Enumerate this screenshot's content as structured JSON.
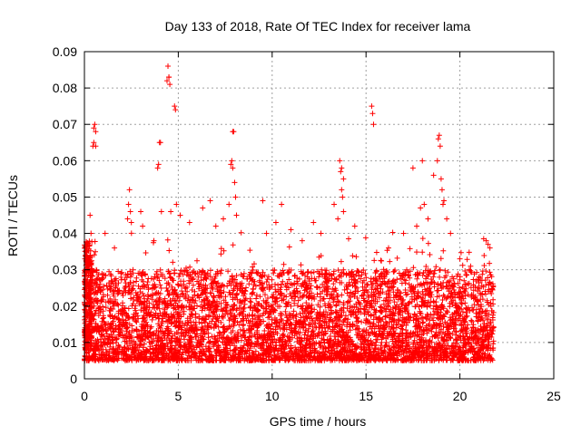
{
  "chart_data": {
    "type": "scatter",
    "title": "Day 133 of 2018, Rate Of TEC Index for receiver lama",
    "xlabel": "GPS time / hours",
    "ylabel": "ROTI / TECUs",
    "xlim": [
      0,
      25
    ],
    "ylim": [
      0,
      0.09
    ],
    "x_ticks": [
      0,
      5,
      10,
      15,
      20,
      25
    ],
    "y_ticks": [
      0,
      0.01,
      0.02,
      0.03,
      0.04,
      0.05,
      0.06,
      0.07,
      0.08,
      0.09
    ],
    "x_tick_labels": [
      "0",
      "5",
      "10",
      "15",
      "20",
      "25"
    ],
    "y_tick_labels": [
      "0",
      "0.01",
      "0.02",
      "0.03",
      "0.04",
      "0.05",
      "0.06",
      "0.07",
      "0.08",
      "0.09"
    ],
    "grid": true,
    "marker": "+",
    "color": "#ff0000",
    "series": [
      {
        "x_range": [
          0,
          21.8
        ],
        "bulk_range": [
          0.005,
          0.03
        ],
        "spikes": [
          {
            "x": 0.3,
            "y": 0.045
          },
          {
            "x": 0.35,
            "y": 0.04
          },
          {
            "x": 0.45,
            "y": 0.064
          },
          {
            "x": 0.5,
            "y": 0.065
          },
          {
            "x": 0.5,
            "y": 0.069
          },
          {
            "x": 0.55,
            "y": 0.07
          },
          {
            "x": 0.6,
            "y": 0.068
          },
          {
            "x": 0.6,
            "y": 0.064
          },
          {
            "x": 1.1,
            "y": 0.04
          },
          {
            "x": 1.6,
            "y": 0.036
          },
          {
            "x": 2.3,
            "y": 0.044
          },
          {
            "x": 2.35,
            "y": 0.048
          },
          {
            "x": 2.4,
            "y": 0.052
          },
          {
            "x": 2.45,
            "y": 0.046
          },
          {
            "x": 2.5,
            "y": 0.043
          },
          {
            "x": 3.0,
            "y": 0.046
          },
          {
            "x": 3.1,
            "y": 0.042
          },
          {
            "x": 3.7,
            "y": 0.038
          },
          {
            "x": 3.9,
            "y": 0.058
          },
          {
            "x": 3.95,
            "y": 0.059
          },
          {
            "x": 4.0,
            "y": 0.065
          },
          {
            "x": 4.05,
            "y": 0.065
          },
          {
            "x": 4.1,
            "y": 0.046
          },
          {
            "x": 4.4,
            "y": 0.082
          },
          {
            "x": 4.45,
            "y": 0.086
          },
          {
            "x": 4.5,
            "y": 0.083
          },
          {
            "x": 4.55,
            "y": 0.081
          },
          {
            "x": 4.5,
            "y": 0.083
          },
          {
            "x": 4.8,
            "y": 0.075
          },
          {
            "x": 4.85,
            "y": 0.074
          },
          {
            "x": 4.6,
            "y": 0.046
          },
          {
            "x": 4.9,
            "y": 0.048
          },
          {
            "x": 5.1,
            "y": 0.045
          },
          {
            "x": 5.6,
            "y": 0.043
          },
          {
            "x": 6.3,
            "y": 0.047
          },
          {
            "x": 6.7,
            "y": 0.049
          },
          {
            "x": 7.0,
            "y": 0.042
          },
          {
            "x": 7.4,
            "y": 0.044
          },
          {
            "x": 7.9,
            "y": 0.068
          },
          {
            "x": 7.95,
            "y": 0.068
          },
          {
            "x": 7.8,
            "y": 0.059
          },
          {
            "x": 7.85,
            "y": 0.06
          },
          {
            "x": 7.9,
            "y": 0.058
          },
          {
            "x": 8.0,
            "y": 0.054
          },
          {
            "x": 8.05,
            "y": 0.05
          },
          {
            "x": 7.7,
            "y": 0.048
          },
          {
            "x": 8.1,
            "y": 0.045
          },
          {
            "x": 9.5,
            "y": 0.049
          },
          {
            "x": 9.7,
            "y": 0.04
          },
          {
            "x": 10.2,
            "y": 0.043
          },
          {
            "x": 10.5,
            "y": 0.048
          },
          {
            "x": 11.0,
            "y": 0.041
          },
          {
            "x": 11.6,
            "y": 0.038
          },
          {
            "x": 12.2,
            "y": 0.043
          },
          {
            "x": 12.6,
            "y": 0.04
          },
          {
            "x": 13.3,
            "y": 0.048
          },
          {
            "x": 13.5,
            "y": 0.044
          },
          {
            "x": 13.6,
            "y": 0.06
          },
          {
            "x": 13.7,
            "y": 0.058
          },
          {
            "x": 13.65,
            "y": 0.057
          },
          {
            "x": 13.7,
            "y": 0.052
          },
          {
            "x": 13.75,
            "y": 0.05
          },
          {
            "x": 13.8,
            "y": 0.046
          },
          {
            "x": 13.8,
            "y": 0.055
          },
          {
            "x": 14.4,
            "y": 0.042
          },
          {
            "x": 15.3,
            "y": 0.075
          },
          {
            "x": 15.35,
            "y": 0.073
          },
          {
            "x": 15.4,
            "y": 0.07
          },
          {
            "x": 16.2,
            "y": 0.036
          },
          {
            "x": 17.0,
            "y": 0.04
          },
          {
            "x": 17.5,
            "y": 0.058
          },
          {
            "x": 17.7,
            "y": 0.042
          },
          {
            "x": 17.9,
            "y": 0.047
          },
          {
            "x": 18.0,
            "y": 0.06
          },
          {
            "x": 18.1,
            "y": 0.048
          },
          {
            "x": 18.3,
            "y": 0.044
          },
          {
            "x": 18.6,
            "y": 0.056
          },
          {
            "x": 18.8,
            "y": 0.06
          },
          {
            "x": 18.85,
            "y": 0.066
          },
          {
            "x": 18.9,
            "y": 0.067
          },
          {
            "x": 18.95,
            "y": 0.064
          },
          {
            "x": 19.0,
            "y": 0.055
          },
          {
            "x": 19.05,
            "y": 0.052
          },
          {
            "x": 19.1,
            "y": 0.048
          },
          {
            "x": 19.15,
            "y": 0.049
          },
          {
            "x": 19.3,
            "y": 0.044
          },
          {
            "x": 19.5,
            "y": 0.04
          },
          {
            "x": 20.0,
            "y": 0.033
          },
          {
            "x": 20.5,
            "y": 0.03
          },
          {
            "x": 21.4,
            "y": 0.038
          },
          {
            "x": 21.5,
            "y": 0.037
          },
          {
            "x": 21.6,
            "y": 0.036
          }
        ]
      }
    ]
  }
}
